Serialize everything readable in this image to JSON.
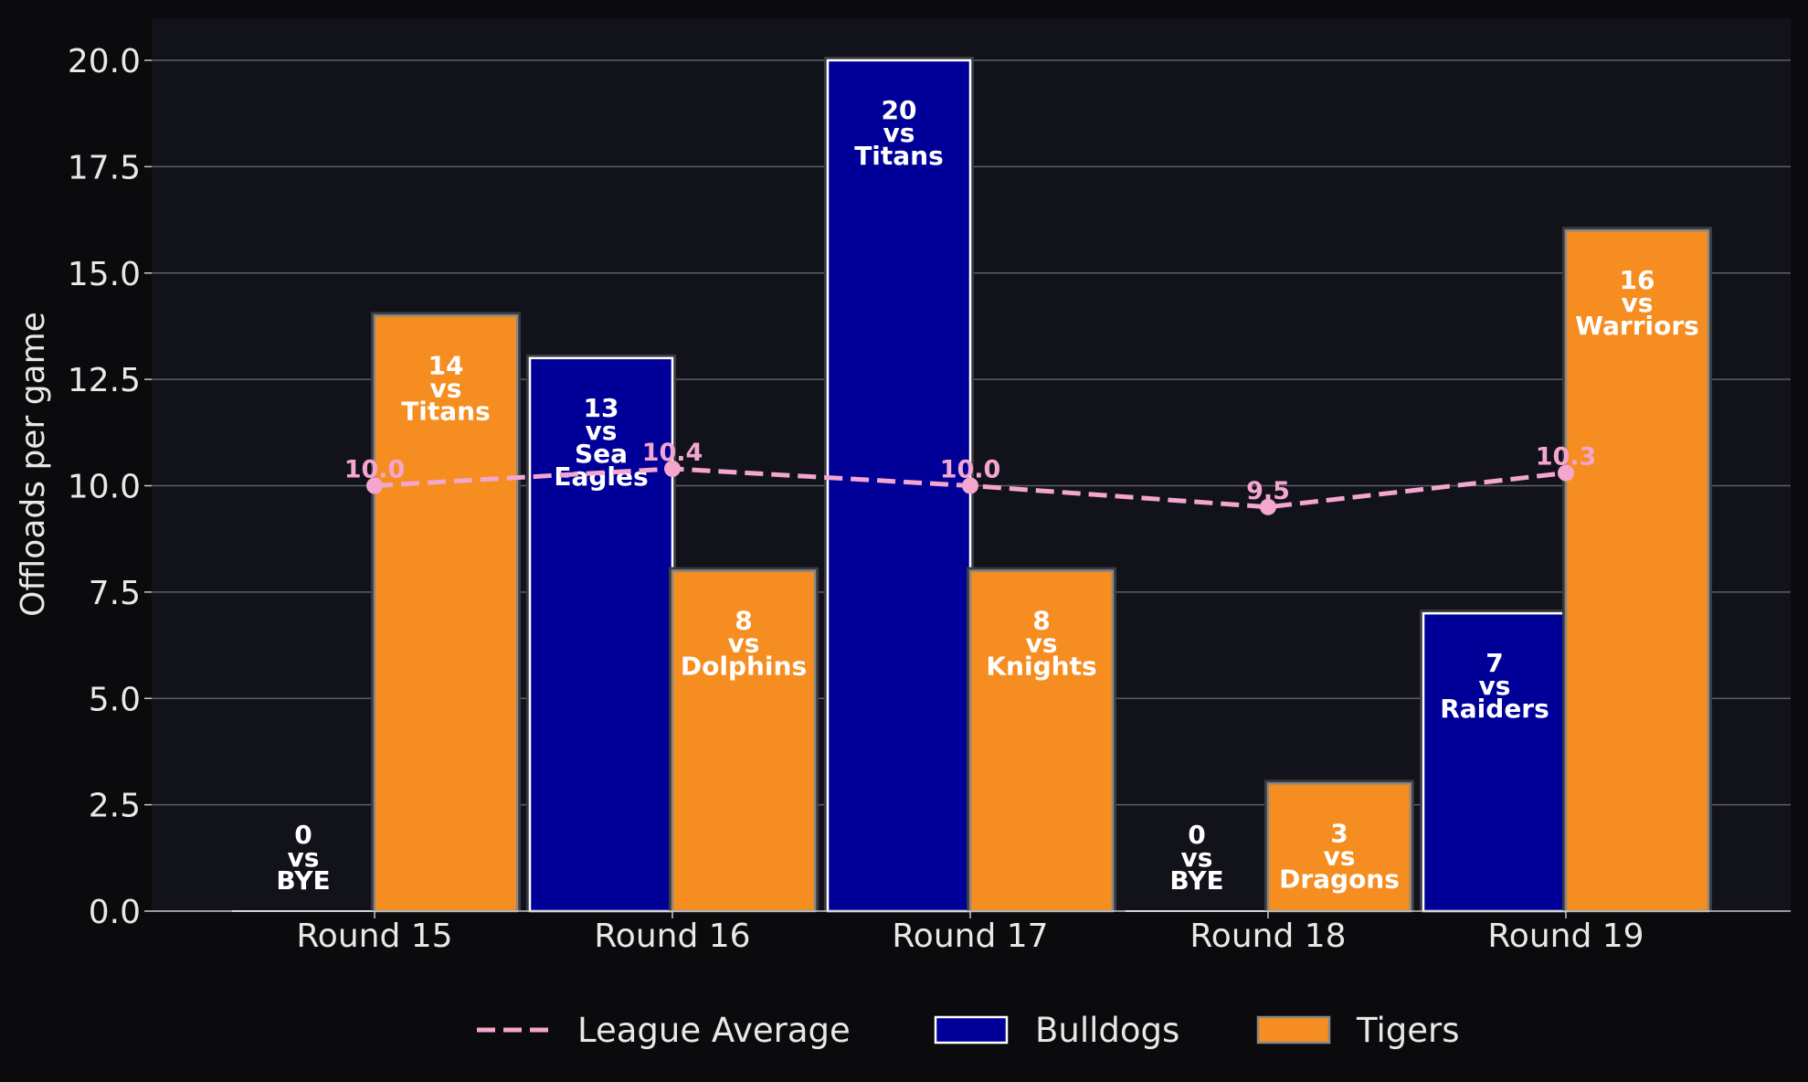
{
  "chart_data": {
    "type": "bar",
    "categories": [
      "Round 15",
      "Round 16",
      "Round 17",
      "Round 18",
      "Round 19"
    ],
    "series": [
      {
        "name": "Bulldogs",
        "color": "#000099",
        "values": [
          0,
          13,
          20,
          0,
          7
        ],
        "opponents": [
          "BYE",
          "Sea Eagles",
          "Titans",
          "BYE",
          "Raiders"
        ]
      },
      {
        "name": "Tigers",
        "color": "#f58d20",
        "values": [
          14,
          8,
          8,
          3,
          16
        ],
        "opponents": [
          "Titans",
          "Dolphins",
          "Knights",
          "Dragons",
          "Warriors"
        ]
      }
    ],
    "line_series": {
      "name": "League Average",
      "color": "#f4a6cf",
      "style": "dashed",
      "values": [
        10.0,
        10.4,
        10.0,
        9.5,
        10.3
      ]
    },
    "vs_word": "vs",
    "title": "",
    "xlabel": "",
    "ylabel": "Offloads per game",
    "ylim": [
      0,
      21
    ],
    "yticks": [
      "0.0",
      "2.5",
      "5.0",
      "7.5",
      "10.0",
      "12.5",
      "15.0",
      "17.5",
      "20.0"
    ],
    "grid": "horizontal",
    "legend_position": "bottom-center",
    "background": "#12131a",
    "figure_background": "#0b0b0e"
  }
}
